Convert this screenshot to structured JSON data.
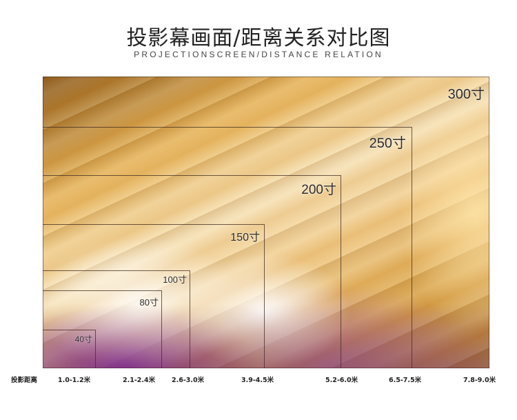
{
  "title": "投影幕画面/距离关系对比图",
  "subtitle": "PROJECTIONSCREEN/DISTANCE RELATION",
  "axis_label": "投影距离",
  "screens": [
    {
      "size": "300寸",
      "distance": "7.8-9.0米"
    },
    {
      "size": "250寸",
      "distance": "6.5-7.5米"
    },
    {
      "size": "200寸",
      "distance": "5.2-6.0米"
    },
    {
      "size": "150寸",
      "distance": "3.9-4.5米"
    },
    {
      "size": "100寸",
      "distance": "2.6-3.0米"
    },
    {
      "size": "80寸",
      "distance": "2.1-2.4米"
    },
    {
      "size": "40寸",
      "distance": "1.0-1.2米"
    }
  ]
}
